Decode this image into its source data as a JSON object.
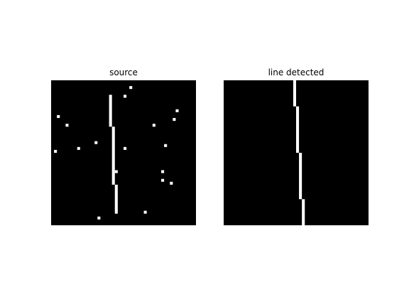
{
  "chart_data": [
    {
      "type": "heatmap",
      "title": "source",
      "grid_size": [
        50,
        50
      ],
      "colors": {
        "background": "#000000",
        "foreground": "#ffffff"
      },
      "line_segments": [
        {
          "x": 20,
          "y_start": 5,
          "y_end": 15
        },
        {
          "x": 21,
          "y_start": 16,
          "y_end": 35
        },
        {
          "x": 22,
          "y_start": 36,
          "y_end": 45
        }
      ],
      "noise_points": [
        [
          27,
          2
        ],
        [
          25,
          5
        ],
        [
          43,
          10
        ],
        [
          2,
          12
        ],
        [
          42,
          13
        ],
        [
          5,
          15
        ],
        [
          35,
          15
        ],
        [
          39,
          22
        ],
        [
          15,
          21
        ],
        [
          9,
          23
        ],
        [
          25,
          23
        ],
        [
          1,
          24
        ],
        [
          22,
          31
        ],
        [
          38,
          31
        ],
        [
          38,
          34
        ],
        [
          41,
          35
        ],
        [
          32,
          45
        ],
        [
          16,
          47
        ]
      ]
    },
    {
      "type": "heatmap",
      "title": "line detected",
      "grid_size": [
        50,
        50
      ],
      "colors": {
        "background": "#000000",
        "foreground": "#ffffff"
      },
      "line_segments": [
        {
          "x": 24,
          "y_start": 0,
          "y_end": 8
        },
        {
          "x": 25,
          "y_start": 9,
          "y_end": 24
        },
        {
          "x": 26,
          "y_start": 25,
          "y_end": 40
        },
        {
          "x": 27,
          "y_start": 41,
          "y_end": 49
        }
      ],
      "noise_points": []
    }
  ]
}
